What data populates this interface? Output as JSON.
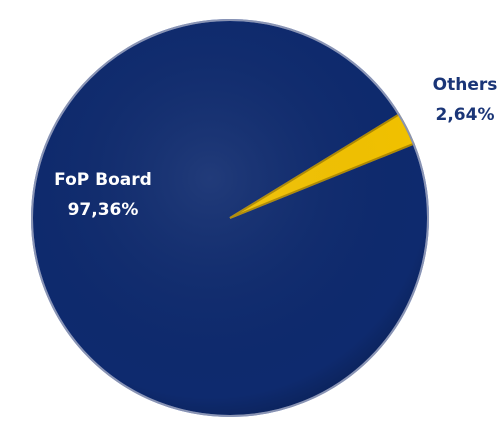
{
  "chart_data": {
    "type": "pie",
    "categories": [
      "FoP Board",
      "Others"
    ],
    "values": [
      97.36,
      2.64
    ],
    "value_labels": [
      "97,36%",
      "2,64%"
    ],
    "colors": [
      "#0e2a6e",
      "#f2c200"
    ]
  }
}
